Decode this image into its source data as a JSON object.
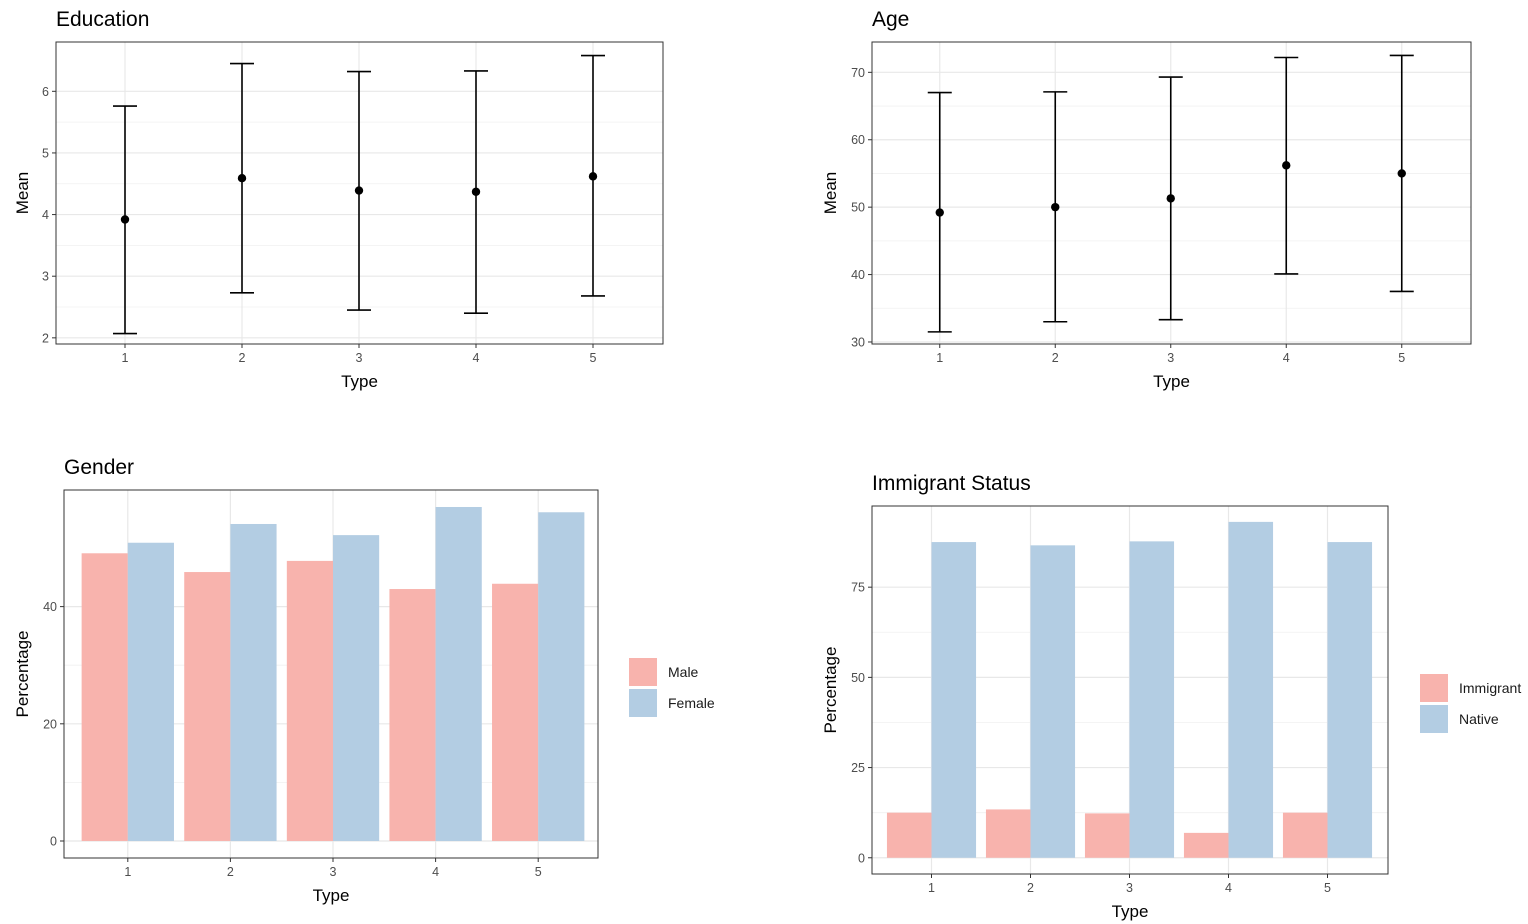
{
  "chart_data": [
    {
      "type": "errorbar",
      "title": "Education",
      "xlabel": "Type",
      "ylabel": "Mean",
      "categories": [
        "1",
        "2",
        "3",
        "4",
        "5"
      ],
      "means": [
        3.92,
        4.59,
        4.39,
        4.37,
        4.62
      ],
      "lower": [
        2.07,
        2.73,
        2.45,
        2.4,
        2.68
      ],
      "upper": [
        5.76,
        6.45,
        6.32,
        6.33,
        6.58
      ],
      "ylim": [
        1.9,
        6.8
      ],
      "yticks": [
        2,
        3,
        4,
        5,
        6
      ],
      "grid": true
    },
    {
      "type": "errorbar",
      "title": "Age",
      "xlabel": "Type",
      "ylabel": "Mean",
      "categories": [
        "1",
        "2",
        "3",
        "4",
        "5"
      ],
      "means": [
        49.2,
        50.0,
        51.3,
        56.2,
        55.0
      ],
      "lower": [
        31.5,
        33.0,
        33.3,
        40.1,
        37.5
      ],
      "upper": [
        67.0,
        67.1,
        69.3,
        72.2,
        72.5
      ],
      "ylim": [
        29.7,
        74.5
      ],
      "yticks": [
        30,
        40,
        50,
        60,
        70
      ],
      "grid": true
    },
    {
      "type": "bar",
      "title": "Gender",
      "xlabel": "Type",
      "ylabel": "Percentage",
      "categories": [
        "1",
        "2",
        "3",
        "4",
        "5"
      ],
      "series": [
        {
          "name": "Male",
          "values": [
            49.1,
            45.9,
            47.8,
            43.0,
            43.9
          ],
          "color": "#F8B3AD"
        },
        {
          "name": "Female",
          "values": [
            50.9,
            54.1,
            52.2,
            57.0,
            56.1
          ],
          "color": "#B3CDE3"
        }
      ],
      "ylim": [
        -2.9,
        59.9
      ],
      "yticks": [
        0,
        20,
        40
      ],
      "legend": "right",
      "grid": true
    },
    {
      "type": "bar",
      "title": "Immigrant Status",
      "xlabel": "Type",
      "ylabel": "Percentage",
      "categories": [
        "1",
        "2",
        "3",
        "4",
        "5"
      ],
      "series": [
        {
          "name": "Immigrant",
          "values": [
            12.5,
            13.4,
            12.3,
            6.9,
            12.5
          ],
          "color": "#F8B3AD"
        },
        {
          "name": "Native",
          "values": [
            87.5,
            86.6,
            87.7,
            93.1,
            87.5
          ],
          "color": "#B3CDE3"
        }
      ],
      "ylim": [
        -4.5,
        97.5
      ],
      "yticks": [
        0,
        25,
        50,
        75
      ],
      "legend": "right",
      "grid": true
    }
  ]
}
